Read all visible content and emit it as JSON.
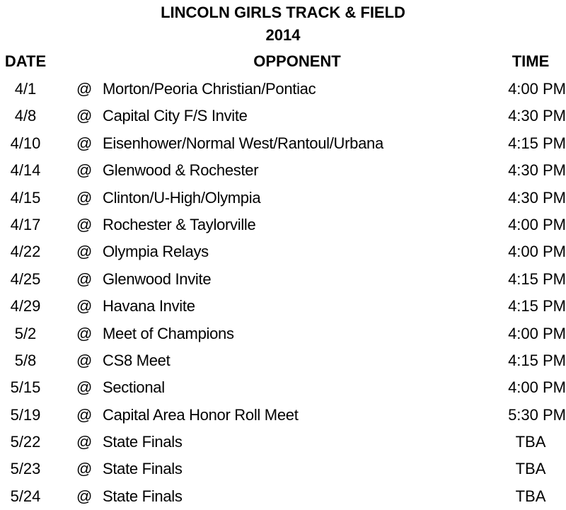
{
  "title": "LINCOLN GIRLS TRACK & FIELD",
  "year": "2014",
  "headers": {
    "date": "DATE",
    "opponent": "OPPONENT",
    "time": "TIME"
  },
  "rows": [
    {
      "date": "4/1",
      "at": "@",
      "opponent": "Morton/Peoria Christian/Pontiac",
      "time": "4:00 PM"
    },
    {
      "date": "4/8",
      "at": "@",
      "opponent": "Capital City F/S Invite",
      "time": "4:30 PM"
    },
    {
      "date": "4/10",
      "at": "@",
      "opponent": "Eisenhower/Normal West/Rantoul/Urbana",
      "time": "4:15 PM"
    },
    {
      "date": "4/14",
      "at": "@",
      "opponent": "Glenwood & Rochester",
      "time": "4:30 PM"
    },
    {
      "date": "4/15",
      "at": "@",
      "opponent": "Clinton/U-High/Olympia",
      "time": "4:30 PM"
    },
    {
      "date": "4/17",
      "at": "@",
      "opponent": "Rochester & Taylorville",
      "time": "4:00 PM"
    },
    {
      "date": "4/22",
      "at": "@",
      "opponent": "Olympia Relays",
      "time": "4:00 PM"
    },
    {
      "date": "4/25",
      "at": "@",
      "opponent": "Glenwood Invite",
      "time": "4:15 PM"
    },
    {
      "date": "4/29",
      "at": "@",
      "opponent": "Havana Invite",
      "time": "4:15 PM"
    },
    {
      "date": "5/2",
      "at": "@",
      "opponent": "Meet of Champions",
      "time": "4:00 PM"
    },
    {
      "date": "5/8",
      "at": "@",
      "opponent": "CS8 Meet",
      "time": "4:15 PM"
    },
    {
      "date": "5/15",
      "at": "@",
      "opponent": "Sectional",
      "time": "4:00 PM"
    },
    {
      "date": "5/19",
      "at": "@",
      "opponent": "Capital Area Honor Roll Meet",
      "time": "5:30 PM"
    },
    {
      "date": "5/22",
      "at": "@",
      "opponent": "State Finals",
      "time": "TBA"
    },
    {
      "date": "5/23",
      "at": "@",
      "opponent": "State Finals",
      "time": "TBA"
    },
    {
      "date": "5/24",
      "at": "@",
      "opponent": "State Finals",
      "time": "TBA"
    }
  ]
}
